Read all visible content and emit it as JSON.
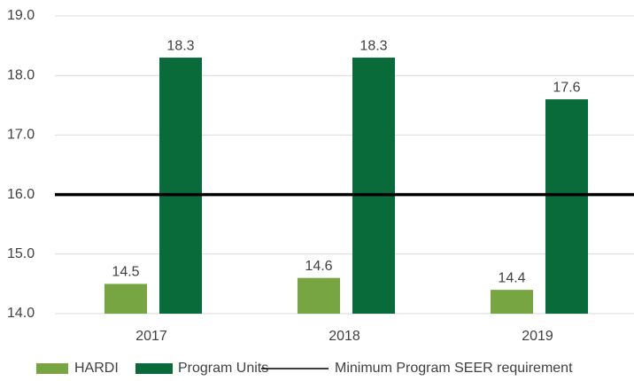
{
  "chart_data": {
    "type": "bar",
    "categories": [
      "2017",
      "2018",
      "2019"
    ],
    "series": [
      {
        "name": "HARDI",
        "color": "#77a541",
        "values": [
          14.5,
          14.6,
          14.4
        ]
      },
      {
        "name": "Program Units",
        "color": "#0a6b3a",
        "values": [
          18.3,
          18.3,
          17.6
        ]
      }
    ],
    "reference_line": {
      "name": "Minimum Program SEER requirement",
      "value": 16,
      "color": "#000000"
    },
    "ylim": [
      14,
      19
    ],
    "yticks": [
      {
        "value": 14,
        "label": "14.0"
      },
      {
        "value": 15,
        "label": "15.0"
      },
      {
        "value": 16,
        "label": "16.0"
      },
      {
        "value": 17,
        "label": "17.0"
      },
      {
        "value": 18,
        "label": "18.0"
      },
      {
        "value": 19,
        "label": "19.0"
      }
    ],
    "grid": true,
    "legend": "bottom"
  }
}
